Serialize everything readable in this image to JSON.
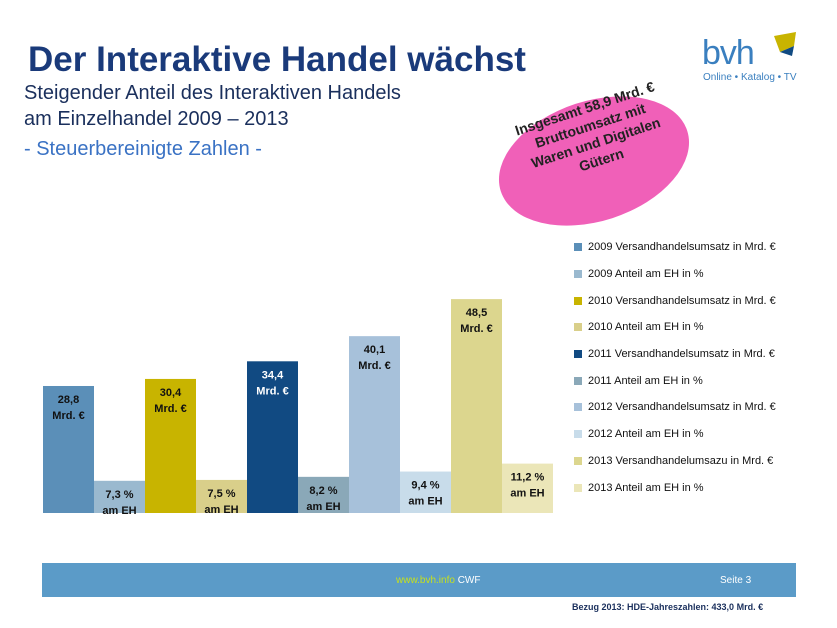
{
  "title": "Der Interaktive Handel wächst",
  "subtitle_line1": "Steigender Anteil des Interaktiven Handels",
  "subtitle_line2": "am Einzelhandel 2009 – 2013",
  "subtitle_line3": "- Steuerbereinigte Zahlen -",
  "logo": {
    "name": "bvh",
    "tagline": "Online • Katalog • TV"
  },
  "callout": "Insgesamt 58,9 Mrd. € Bruttoumsatz mit Waren und Digitalen Gütern",
  "footer": {
    "link": "www.bvh.info",
    "suffix": "CWF",
    "page": "Seite 3"
  },
  "footnote": "Bezug 2013: HDE-Jahreszahlen: 433,0 Mrd. €",
  "chart_data": {
    "type": "bar",
    "categories": [
      "2009",
      "2010",
      "2011",
      "2012",
      "2013"
    ],
    "series": [
      {
        "name": "2009 Versandhandelsumsatz in Mrd. €",
        "color": "#5b8fb8",
        "value": 28.8,
        "label_line1": "28,8",
        "label_line2": "Mrd. €",
        "category": "2009",
        "kind": "umsatz"
      },
      {
        "name": "2009 Anteil am EH in %",
        "color": "#9ab9cf",
        "value": 7.3,
        "label_line1": "7,3 %",
        "label_line2": "am EH",
        "category": "2009",
        "kind": "anteil"
      },
      {
        "name": "2010 Versandhandelsumsatz in Mrd. €",
        "color": "#c8b400",
        "value": 30.4,
        "label_line1": "30,4",
        "label_line2": "Mrd. €",
        "category": "2010",
        "kind": "umsatz"
      },
      {
        "name": "2010 Anteil am EH in %",
        "color": "#d9cf8a",
        "value": 7.5,
        "label_line1": "7,5 %",
        "label_line2": "am EH",
        "category": "2010",
        "kind": "anteil"
      },
      {
        "name": "2011 Versandhandelsumsatz in Mrd. €",
        "color": "#114a82",
        "value": 34.4,
        "label_line1": "34,4",
        "label_line2": "Mrd. €",
        "category": "2011",
        "kind": "umsatz"
      },
      {
        "name": "2011 Anteil am EH in %",
        "color": "#8aa8b8",
        "value": 8.2,
        "label_line1": "8,2 %",
        "label_line2": "am EH",
        "category": "2011",
        "kind": "anteil"
      },
      {
        "name": "2012 Versandhandelsumsatz in Mrd. €",
        "color": "#a7c1da",
        "value": 40.1,
        "label_line1": "40,1",
        "label_line2": "Mrd. €",
        "category": "2012",
        "kind": "umsatz"
      },
      {
        "name": "2012 Anteil am EH in %",
        "color": "#c8dcea",
        "value": 9.4,
        "label_line1": "9,4 %",
        "label_line2": "am EH",
        "category": "2012",
        "kind": "anteil"
      },
      {
        "name": "2013 Versandhandelumsazu in Mrd. €",
        "color": "#dcd68e",
        "value": 48.5,
        "label_line1": "48,5",
        "label_line2": "Mrd. €",
        "category": "2013",
        "kind": "umsatz"
      },
      {
        "name": "2013 Anteil am EH in %",
        "color": "#ebe6b8",
        "value": 11.2,
        "label_line1": "11,2 %",
        "label_line2": "am EH",
        "category": "2013",
        "kind": "anteil"
      }
    ],
    "grid": false,
    "legend_position": "right"
  }
}
